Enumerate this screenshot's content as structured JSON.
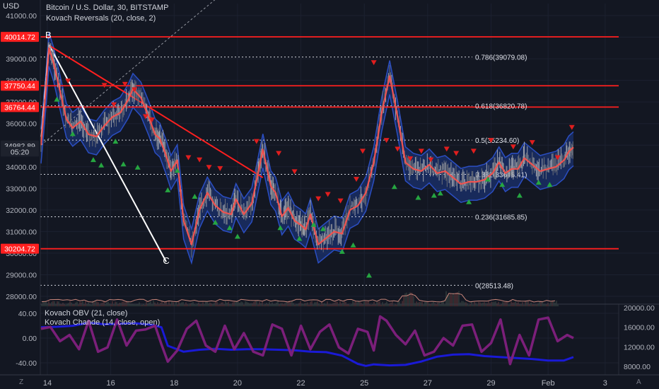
{
  "header": {
    "symbol_title": "Bitcoin / U.S. Dollar, 30, BITSTAMP",
    "indicator_label": "Kovach Reversals (20, close, 2)",
    "currency": "USD"
  },
  "lower_pane": {
    "obv_label": "Kovach OBV (21, close)",
    "chande_label": "Kovach Chande (14, close, open)"
  },
  "bottom_bar": {
    "left_icon_label": "Z",
    "right_icon_label": "A"
  },
  "colors": {
    "background": "#131722",
    "price": "#ef5350",
    "band": "#1e3a8a",
    "support_resistance": "#ff1f1f",
    "obv_line": "#1a1ad6",
    "chande_line": "#7b1f7a",
    "up_signal": "#26a641",
    "down_signal": "#e01e1e"
  },
  "chart_data": [
    {
      "type": "line",
      "title": "Bitcoin / U.S. Dollar, 30, BITSTAMP",
      "ylabel": "USD",
      "ylim": [
        27500,
        41400
      ],
      "x_tick_labels": [
        "14",
        "16",
        "18",
        "20",
        "22",
        "25",
        "27",
        "29",
        "Feb",
        "3"
      ],
      "y_tick_labels": [
        "41000.00",
        "40000.00",
        "39000.00",
        "38000.00",
        "37000.00",
        "36000.00",
        "35000.00",
        "34000.00",
        "33000.00",
        "32000.00",
        "31000.00",
        "30000.00",
        "29000.00",
        "28000.00"
      ],
      "price_tags": [
        {
          "label": "40014.72",
          "value": 40014.72
        },
        {
          "label": "37750.44",
          "value": 37750.44
        },
        {
          "label": "36764.44",
          "value": 36764.44
        },
        {
          "label": "34982.89",
          "value": 34982.89
        },
        {
          "label": "05:20",
          "value": 34700
        },
        {
          "label": "30204.72",
          "value": 30204.72
        }
      ],
      "horizontal_levels": [
        40014.72,
        37750.44,
        36764.44,
        30204.72
      ],
      "fibonacci": [
        {
          "label": "0.786(39079.08)",
          "value": 39079.08
        },
        {
          "label": "0.618(36820.78)",
          "value": 36820.78
        },
        {
          "label": "0.5(35234.60)",
          "value": 35234.6
        },
        {
          "label": "0.382(33648.41)",
          "value": 33648.41
        },
        {
          "label": "0.236(31685.85)",
          "value": 31685.85
        },
        {
          "label": "0(28513.48)",
          "value": 28513.48
        }
      ],
      "annotations": [
        {
          "text": "B",
          "x": 0.46,
          "y": 39950
        },
        {
          "text": "C",
          "x": 7.9,
          "y": 29500
        }
      ],
      "trend_lines": [
        {
          "x1": 0,
          "y1": 35200,
          "x2": 0.5,
          "y2": 39650,
          "color": "#ffffff"
        },
        {
          "x1": 0.5,
          "y1": 39650,
          "x2": 7.9,
          "y2": 29600,
          "color": "#ffffff"
        },
        {
          "x1": 0.55,
          "y1": 39600,
          "x2": 14.0,
          "y2": 33500,
          "color": "#ff1f1f"
        }
      ],
      "dashed_trend_line": {
        "x1": 0,
        "y1": 35000,
        "x2": 16.3,
        "y2": 45000
      },
      "series": [
        {
          "x": [
            0,
            0.3,
            0.5,
            0.8,
            1.2,
            1.6,
            2.0,
            2.5,
            3.0,
            3.5,
            4.0,
            4.5,
            5.0,
            5.5,
            5.8,
            6.3,
            6.8,
            7.2,
            7.5,
            7.9,
            8.2,
            8.6,
            9.0,
            9.5,
            10.0,
            10.5,
            11.0,
            11.5,
            12.0,
            12.3,
            12.8,
            13.3,
            13.7,
            14.0,
            14.5,
            14.8,
            15.2,
            15.6,
            16.0,
            16.4,
            16.7,
            17.0,
            17.5,
            18.0,
            18.5,
            19.0,
            19.5,
            20.0,
            20.5,
            21.0,
            21.5,
            22.0,
            22.5,
            23.0,
            23.5,
            24.0,
            24.5,
            25.0,
            25.5,
            26.0,
            26.5,
            27.0,
            27.5,
            28.0,
            28.5,
            28.9,
            29.3,
            29.7,
            30.1,
            30.5,
            31.0,
            31.5,
            32.0,
            32.5,
            33.0,
            33.3,
            33.6
          ],
          "y": [
            35000,
            37500,
            39500,
            38800,
            37500,
            36200,
            35800,
            36100,
            35500,
            35400,
            35900,
            36300,
            36500,
            37100,
            37600,
            37200,
            36300,
            35500,
            35300,
            34500,
            33800,
            34300,
            31500,
            30400,
            32000,
            32800,
            32200,
            31900,
            31800,
            32500,
            31800,
            32300,
            33700,
            34800,
            33100,
            32800,
            31700,
            32100,
            31500,
            31300,
            31100,
            31800,
            30400,
            30700,
            31000,
            30900,
            32000,
            32200,
            32800,
            34200,
            36500,
            38200,
            36300,
            34200,
            33900,
            33800,
            34100,
            33700,
            33800,
            33500,
            33200,
            33300,
            33300,
            33400,
            33700,
            34200,
            33700,
            33900,
            33900,
            34400,
            34100,
            33800,
            33900,
            34000,
            34300,
            34700,
            34900
          ]
        }
      ],
      "down_signals": [
        {
          "x": 1.7,
          "y": 37950
        },
        {
          "x": 4.0,
          "y": 37750
        },
        {
          "x": 4.6,
          "y": 36850
        },
        {
          "x": 5.3,
          "y": 37800
        },
        {
          "x": 5.9,
          "y": 37550
        },
        {
          "x": 6.6,
          "y": 36300
        },
        {
          "x": 7.0,
          "y": 36150
        },
        {
          "x": 9.3,
          "y": 34400
        },
        {
          "x": 10.0,
          "y": 34300
        },
        {
          "x": 10.6,
          "y": 33950
        },
        {
          "x": 11.3,
          "y": 33900
        },
        {
          "x": 13.6,
          "y": 35150
        },
        {
          "x": 15.0,
          "y": 34600
        },
        {
          "x": 16.0,
          "y": 33750
        },
        {
          "x": 17.5,
          "y": 32500
        },
        {
          "x": 18.1,
          "y": 32700
        },
        {
          "x": 18.9,
          "y": 32400
        },
        {
          "x": 19.9,
          "y": 33400
        },
        {
          "x": 20.3,
          "y": 34700
        },
        {
          "x": 21.0,
          "y": 38800
        },
        {
          "x": 21.8,
          "y": 35200
        },
        {
          "x": 22.5,
          "y": 34800
        },
        {
          "x": 23.3,
          "y": 34350
        },
        {
          "x": 24.0,
          "y": 34700
        },
        {
          "x": 24.6,
          "y": 34300
        },
        {
          "x": 25.6,
          "y": 34800
        },
        {
          "x": 26.2,
          "y": 34600
        },
        {
          "x": 27.3,
          "y": 34700
        },
        {
          "x": 28.4,
          "y": 35200
        },
        {
          "x": 29.8,
          "y": 34900
        },
        {
          "x": 31.0,
          "y": 35100
        },
        {
          "x": 32.6,
          "y": 34400
        },
        {
          "x": 33.5,
          "y": 35800
        }
      ],
      "up_signals": [
        {
          "x": 1.0,
          "y": 37150
        },
        {
          "x": 2.0,
          "y": 35550
        },
        {
          "x": 3.3,
          "y": 34350
        },
        {
          "x": 3.8,
          "y": 34100
        },
        {
          "x": 4.7,
          "y": 35200
        },
        {
          "x": 5.2,
          "y": 34150
        },
        {
          "x": 6.1,
          "y": 34000
        },
        {
          "x": 8.0,
          "y": 32950
        },
        {
          "x": 8.6,
          "y": 33850
        },
        {
          "x": 9.7,
          "y": 32650
        },
        {
          "x": 11.0,
          "y": 31450
        },
        {
          "x": 11.9,
          "y": 31200
        },
        {
          "x": 12.4,
          "y": 30800
        },
        {
          "x": 15.1,
          "y": 31200
        },
        {
          "x": 16.3,
          "y": 30700
        },
        {
          "x": 17.2,
          "y": 31350
        },
        {
          "x": 17.8,
          "y": 31150
        },
        {
          "x": 19.0,
          "y": 30100
        },
        {
          "x": 19.7,
          "y": 30400
        },
        {
          "x": 20.7,
          "y": 29000
        },
        {
          "x": 22.3,
          "y": 33100
        },
        {
          "x": 23.8,
          "y": 32600
        },
        {
          "x": 24.8,
          "y": 32700
        },
        {
          "x": 25.2,
          "y": 32800
        },
        {
          "x": 27.0,
          "y": 32400
        },
        {
          "x": 28.2,
          "y": 33450
        },
        {
          "x": 29.1,
          "y": 33200
        },
        {
          "x": 30.2,
          "y": 32700
        },
        {
          "x": 31.4,
          "y": 33300
        },
        {
          "x": 32.1,
          "y": 33200
        }
      ],
      "volume_baseline": 27800
    },
    {
      "type": "line",
      "title": "Kovach OBV (21, close) / Kovach Chande (14, close, open)",
      "left_ylim": [
        -55,
        50
      ],
      "right_ylim": [
        6500,
        21000
      ],
      "left_tick_labels": [
        "40.00",
        "0.00",
        "-40.00"
      ],
      "right_tick_labels": [
        "20000.00",
        "16000.00",
        "12000.00",
        "8000.00"
      ],
      "series": [
        {
          "name": "Kovach OBV (21, close)",
          "axis": "right",
          "x": [
            0,
            1.0,
            2.0,
            3.0,
            4.0,
            5.0,
            6.0,
            7.0,
            7.6,
            8.0,
            9.0,
            10.0,
            11.0,
            12.0,
            13.0,
            14.0,
            15.0,
            16.0,
            17.0,
            18.0,
            19.0,
            20.0,
            20.5,
            21.0,
            22.0,
            23.0,
            24.0,
            25.0,
            26.0,
            27.0,
            28.0,
            29.0,
            30.0,
            31.0,
            32.0,
            33.0,
            33.6
          ],
          "y": [
            16000,
            16100,
            16300,
            16900,
            16600,
            16700,
            16800,
            16500,
            16000,
            12200,
            11000,
            11400,
            11600,
            11400,
            11500,
            11500,
            11400,
            11300,
            11000,
            10900,
            10200,
            8500,
            8100,
            8400,
            8200,
            8300,
            9000,
            10000,
            10400,
            10500,
            10100,
            9900,
            9700,
            9500,
            9200,
            9200,
            9900
          ]
        },
        {
          "name": "Kovach Chande (14, close, open)",
          "axis": "left",
          "x": [
            0,
            0.6,
            1.2,
            1.8,
            2.4,
            3.0,
            3.6,
            4.2,
            4.8,
            5.4,
            6.0,
            6.6,
            7.2,
            7.6,
            8.0,
            8.6,
            9.2,
            9.8,
            10.4,
            11.0,
            11.6,
            12.2,
            12.8,
            13.4,
            14.0,
            14.6,
            15.2,
            15.8,
            16.4,
            17.0,
            17.6,
            18.2,
            18.8,
            19.4,
            20.0,
            20.6,
            21.0,
            21.4,
            21.8,
            22.4,
            23.0,
            23.6,
            24.2,
            24.8,
            25.4,
            26.0,
            26.6,
            27.2,
            27.8,
            28.4,
            29.0,
            29.6,
            30.2,
            30.8,
            31.4,
            32.0,
            32.6,
            33.2,
            33.6
          ],
          "y": [
            15,
            18,
            -5,
            5,
            -18,
            28,
            -22,
            -15,
            30,
            -12,
            12,
            14,
            20,
            -10,
            -38,
            -20,
            15,
            28,
            -12,
            -22,
            20,
            -18,
            8,
            -22,
            -28,
            22,
            15,
            -28,
            20,
            -18,
            10,
            22,
            -15,
            -25,
            15,
            10,
            -20,
            35,
            28,
            5,
            -10,
            12,
            -28,
            -22,
            0,
            -12,
            20,
            22,
            -22,
            -8,
            30,
            -42,
            5,
            -28,
            30,
            33,
            -5,
            5,
            0
          ]
        }
      ]
    }
  ]
}
